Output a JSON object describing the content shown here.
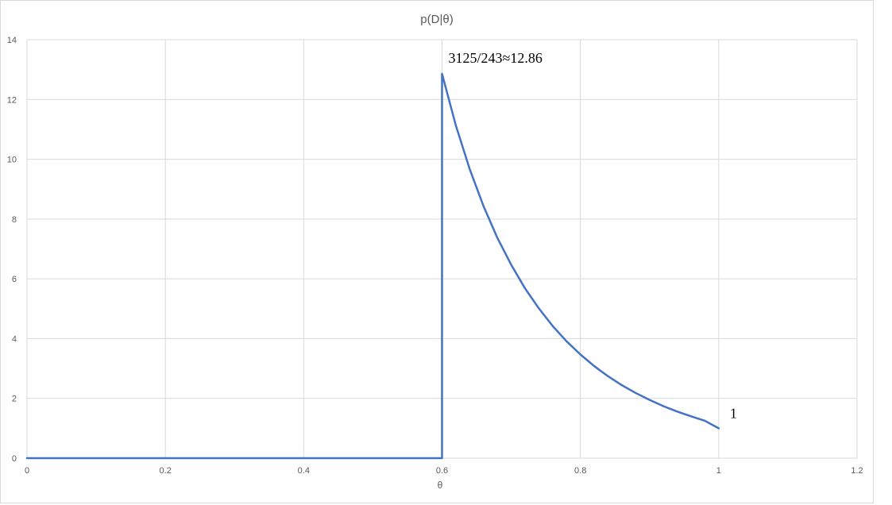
{
  "chart_data": {
    "type": "line",
    "title": "p(D|θ)",
    "xlabel": "θ",
    "ylabel": "",
    "xlim": [
      0,
      1.2
    ],
    "ylim": [
      0,
      14
    ],
    "x_ticks": [
      0,
      0.2,
      0.4,
      0.6,
      0.8,
      1,
      1.2
    ],
    "x_tick_labels": [
      "0",
      "0.2",
      "0.4",
      "0.6",
      "0.8",
      "1",
      "1.2"
    ],
    "y_ticks": [
      0,
      2,
      4,
      6,
      8,
      10,
      12,
      14
    ],
    "y_tick_labels": [
      "0",
      "2",
      "4",
      "6",
      "8",
      "10",
      "12",
      "14"
    ],
    "grid": true,
    "legend": "none",
    "series": [
      {
        "color": "#4472c4",
        "x": [
          0,
          0.6,
          0.6,
          0.62,
          0.64,
          0.66,
          0.68,
          0.7,
          0.72,
          0.74,
          0.76,
          0.78,
          0.8,
          0.82,
          0.84,
          0.86,
          0.88,
          0.9,
          0.92,
          0.94,
          0.96,
          0.98,
          1.0
        ],
        "y": [
          0,
          0,
          12.86,
          11.13,
          9.67,
          8.43,
          7.37,
          6.47,
          5.68,
          5.01,
          4.42,
          3.91,
          3.47,
          3.08,
          2.74,
          2.44,
          2.18,
          1.95,
          1.74,
          1.56,
          1.4,
          1.25,
          1.0
        ]
      }
    ],
    "annotations": [
      {
        "text": "3125/243≈12.86",
        "x": 0.6,
        "y": 12.86
      },
      {
        "text": "1",
        "x": 1.0,
        "y": 1.0
      }
    ]
  }
}
